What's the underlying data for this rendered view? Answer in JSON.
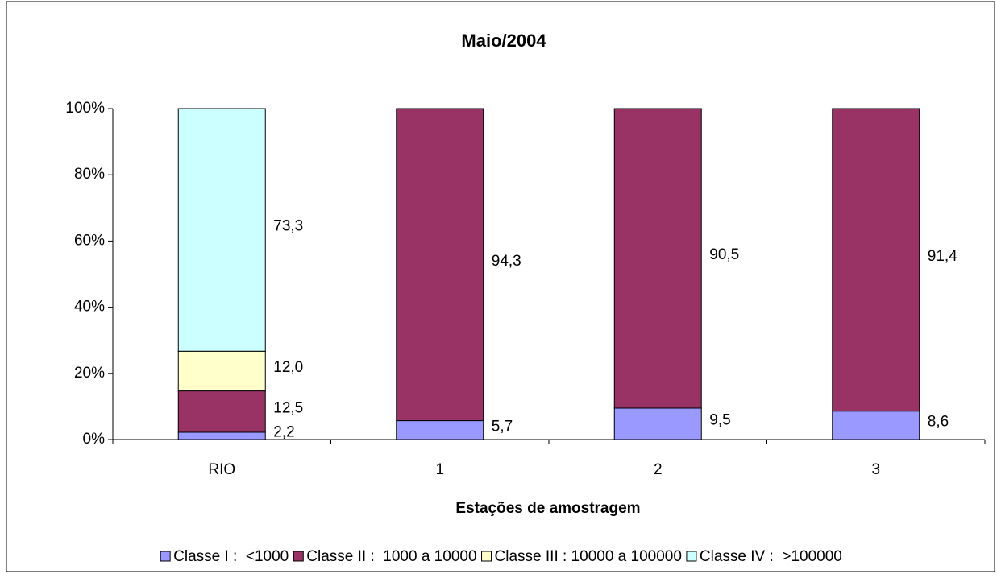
{
  "chart_data": {
    "type": "stacked_bar",
    "title": "Maio/2004",
    "x_label": "Estações de amostragem",
    "categories": [
      "RIO",
      "1",
      "2",
      "3"
    ],
    "series": [
      {
        "name": "Classe I :  <1000",
        "color": "#9999ff",
        "values": [
          2.2,
          5.7,
          9.5,
          8.6
        ],
        "value_labels": [
          "2,2",
          "5,7",
          "9,5",
          "8,6"
        ]
      },
      {
        "name": "Classe II :  1000 a 10000",
        "color": "#993366",
        "values": [
          12.5,
          94.3,
          90.5,
          91.4
        ],
        "value_labels": [
          "12,5",
          "94,3",
          "90,5",
          "91,4"
        ]
      },
      {
        "name": "Classe III : 10000 a 100000",
        "color": "#ffffcc",
        "values": [
          12.0,
          null,
          null,
          null
        ],
        "value_labels": [
          "12,0",
          null,
          null,
          null
        ]
      },
      {
        "name": "Classe IV :  >100000",
        "color": "#ccffff",
        "values": [
          73.3,
          null,
          null,
          null
        ],
        "value_labels": [
          "73,3",
          null,
          null,
          null
        ]
      }
    ],
    "ylim": [
      0,
      100
    ],
    "yticks": [
      {
        "value": 0,
        "label": "0%"
      },
      {
        "value": 20,
        "label": "20%"
      },
      {
        "value": 40,
        "label": "40%"
      },
      {
        "value": 60,
        "label": "60%"
      },
      {
        "value": 80,
        "label": "80%"
      },
      {
        "value": 100,
        "label": "100%"
      }
    ],
    "legend": "bottom"
  }
}
